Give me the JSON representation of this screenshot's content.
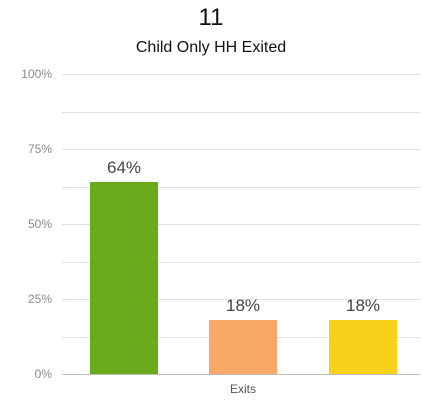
{
  "header": {
    "count": "11",
    "title": "Child Only HH Exited"
  },
  "chart_data": {
    "type": "bar",
    "categories": [
      "Exits"
    ],
    "series": [
      {
        "values": [
          64
        ],
        "label": "64%",
        "color": "#6aaa1b"
      },
      {
        "values": [
          18
        ],
        "label": "18%",
        "color": "#f8a967"
      },
      {
        "values": [
          18
        ],
        "label": "18%",
        "color": "#f8d11b"
      }
    ],
    "yticks": [
      "0%",
      "25%",
      "50%",
      "75%",
      "100%"
    ],
    "ylim": [
      0,
      100
    ],
    "grid": true,
    "legend": "none"
  }
}
